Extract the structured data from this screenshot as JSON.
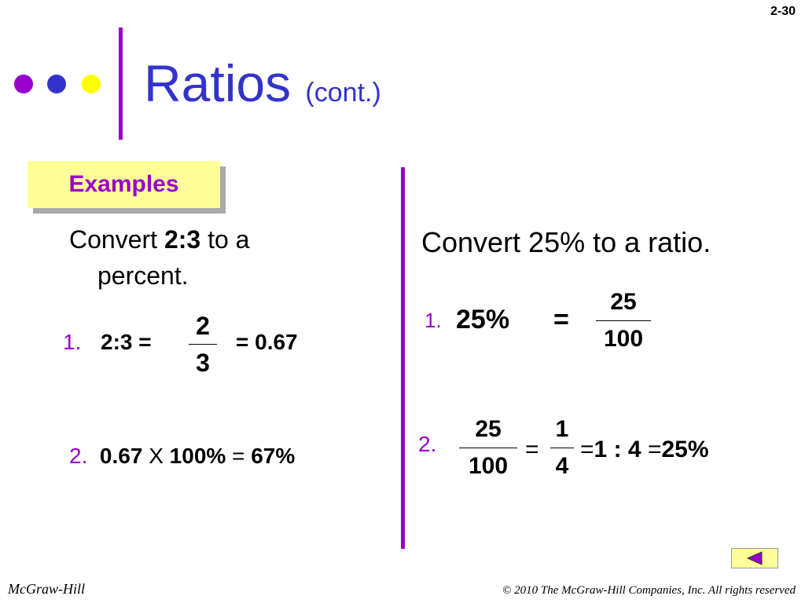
{
  "page_number": "2-30",
  "header": {
    "title": "Ratios",
    "subtitle": "(cont.)"
  },
  "examples_label": "Examples",
  "left": {
    "prompt_start": "Convert",
    "prompt_bold": "2:3",
    "prompt_end": "to a percent.",
    "step1": {
      "number": "1.",
      "lhs": "2:3 =",
      "numerator": "2",
      "denominator": "3",
      "result": "= 0.67"
    },
    "step2": {
      "number": "2.",
      "a": "0.67",
      "op": "X",
      "b": "100%",
      "eq": "=",
      "result": "67%"
    }
  },
  "right": {
    "prompt": "Convert 25% to a ratio.",
    "step1": {
      "number": "1.",
      "lhs": "25%",
      "eq": "=",
      "numerator": "25",
      "denominator": "100"
    },
    "step2": {
      "number": "2.",
      "numerator1": "25",
      "denominator1": "100",
      "eq1": "=",
      "numerator2": "1",
      "denominator2": "4",
      "eq2": "=",
      "ratio_a": "1",
      "colon": ":",
      "ratio_b": "4",
      "eq3": "=",
      "result": "25%"
    }
  },
  "footer": {
    "publisher": "McGraw-Hill",
    "copyright": "© 2010 The McGraw-Hill Companies, Inc. All rights reserved"
  }
}
